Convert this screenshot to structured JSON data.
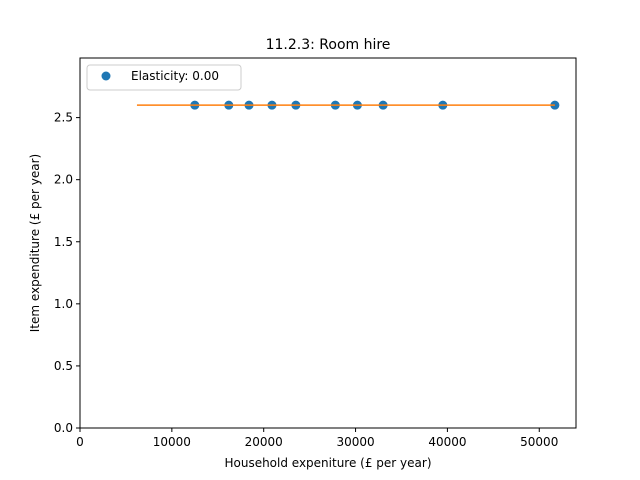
{
  "chart_data": {
    "type": "scatter",
    "title": "11.2.3: Room hire",
    "xlabel": "Household expeniture (£ per year)",
    "ylabel": "Item expenditure (£ per year)",
    "xlim": [
      0,
      54000
    ],
    "ylim": [
      0,
      2.98
    ],
    "xticks": [
      0,
      10000,
      20000,
      30000,
      40000,
      50000
    ],
    "yticks": [
      0.0,
      0.5,
      1.0,
      1.5,
      2.0,
      2.5
    ],
    "xtick_labels": [
      "0",
      "10000",
      "20000",
      "30000",
      "40000",
      "50000"
    ],
    "ytick_labels": [
      "0.0",
      "0.5",
      "1.0",
      "1.5",
      "2.0",
      "2.5"
    ],
    "series": [
      {
        "name": "Elasticity: 0.00",
        "kind": "scatter",
        "color": "#1f77b4",
        "x": [
          12500,
          16200,
          18400,
          20900,
          23500,
          27800,
          30200,
          33000,
          39500,
          51700
        ],
        "y": [
          2.6,
          2.6,
          2.6,
          2.6,
          2.6,
          2.6,
          2.6,
          2.6,
          2.6,
          2.6
        ]
      },
      {
        "kind": "line",
        "color": "#ff7f0e",
        "x": [
          6200,
          51700
        ],
        "y": [
          2.6,
          2.6
        ]
      }
    ],
    "legend": {
      "placement": "upper-left",
      "entries": [
        "Elasticity: 0.00"
      ]
    },
    "grid": false
  }
}
